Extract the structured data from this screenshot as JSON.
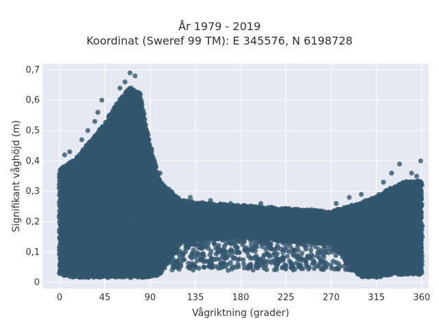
{
  "chart_data": {
    "type": "scatter",
    "title": "År 1979 - 2019",
    "subtitle": "Koordinat (Sweref 99 TM): E 345576, N 6198728",
    "xlabel": "Vågriktning (grader)",
    "ylabel": "Signifikant våghöjd (m)",
    "xlim": [
      -17,
      367
    ],
    "ylim": [
      -0.02,
      0.72
    ],
    "x_ticks": [
      0,
      45,
      90,
      135,
      180,
      225,
      270,
      315,
      360
    ],
    "x_tick_labels": [
      "0",
      "45",
      "90",
      "135",
      "180",
      "225",
      "270",
      "315",
      "360"
    ],
    "y_ticks": [
      0,
      0.1,
      0.2,
      0.3,
      0.4,
      0.5,
      0.6,
      0.7
    ],
    "y_tick_labels": [
      "0",
      "0,1",
      "0,2",
      "0,3",
      "0,4",
      "0,5",
      "0,6",
      "0,7"
    ],
    "grid": true,
    "legend": "none",
    "marker_color": "#33566e",
    "plot_background": "#e6e9f1",
    "series": [
      {
        "main_band": [
          [
            0,
            0.37
          ],
          [
            15,
            0.4
          ],
          [
            30,
            0.46
          ],
          [
            45,
            0.52
          ],
          [
            60,
            0.6
          ],
          [
            70,
            0.64
          ],
          [
            80,
            0.62
          ],
          [
            90,
            0.45
          ],
          [
            100,
            0.33
          ],
          [
            120,
            0.27
          ],
          [
            135,
            0.26
          ],
          [
            180,
            0.25
          ],
          [
            225,
            0.24
          ],
          [
            270,
            0.23
          ],
          [
            300,
            0.26
          ],
          [
            315,
            0.28
          ],
          [
            330,
            0.31
          ],
          [
            345,
            0.33
          ],
          [
            360,
            0.33
          ]
        ],
        "lower_band": [
          [
            0,
            0.03
          ],
          [
            15,
            0.02
          ],
          [
            30,
            0.02
          ],
          [
            45,
            0.02
          ],
          [
            60,
            0.02
          ],
          [
            70,
            0.02
          ],
          [
            80,
            0.02
          ],
          [
            90,
            0.02
          ],
          [
            100,
            0.03
          ],
          [
            120,
            0.13
          ],
          [
            135,
            0.14
          ],
          [
            180,
            0.15
          ],
          [
            225,
            0.14
          ],
          [
            270,
            0.13
          ],
          [
            300,
            0.02
          ],
          [
            315,
            0.02
          ],
          [
            330,
            0.03
          ],
          [
            345,
            0.03
          ],
          [
            360,
            0.03
          ]
        ],
        "outliers": [
          [
            70,
            0.69
          ],
          [
            75,
            0.68
          ],
          [
            65,
            0.66
          ],
          [
            60,
            0.64
          ],
          [
            38,
            0.56
          ],
          [
            42,
            0.6
          ],
          [
            35,
            0.53
          ],
          [
            28,
            0.5
          ],
          [
            22,
            0.47
          ],
          [
            10,
            0.43
          ],
          [
            5,
            0.42
          ],
          [
            100,
            0.36
          ],
          [
            95,
            0.39
          ],
          [
            110,
            0.3
          ],
          [
            130,
            0.28
          ],
          [
            150,
            0.27
          ],
          [
            170,
            0.26
          ],
          [
            200,
            0.26
          ],
          [
            250,
            0.24
          ],
          [
            275,
            0.26
          ],
          [
            288,
            0.28
          ],
          [
            300,
            0.29
          ],
          [
            322,
            0.33
          ],
          [
            330,
            0.36
          ],
          [
            338,
            0.39
          ],
          [
            350,
            0.36
          ],
          [
            355,
            0.35
          ],
          [
            359,
            0.4
          ],
          [
            145,
            0.07
          ],
          [
            160,
            0.06
          ],
          [
            175,
            0.05
          ],
          [
            190,
            0.06
          ],
          [
            205,
            0.07
          ],
          [
            215,
            0.06
          ],
          [
            230,
            0.05
          ],
          [
            245,
            0.07
          ],
          [
            258,
            0.06
          ],
          [
            272,
            0.07
          ],
          [
            285,
            0.06
          ],
          [
            295,
            0.05
          ],
          [
            178,
            0.1
          ],
          [
            192,
            0.08
          ],
          [
            212,
            0.09
          ],
          [
            236,
            0.09
          ]
        ]
      }
    ]
  }
}
